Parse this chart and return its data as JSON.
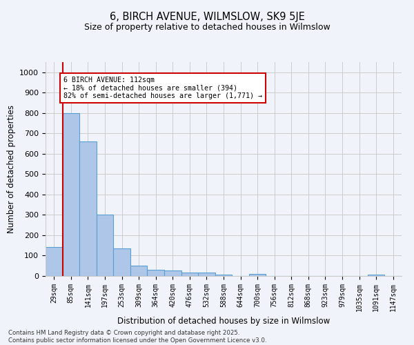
{
  "title": "6, BIRCH AVENUE, WILMSLOW, SK9 5JE",
  "subtitle": "Size of property relative to detached houses in Wilmslow",
  "xlabel": "Distribution of detached houses by size in Wilmslow",
  "ylabel": "Number of detached properties",
  "bins": [
    "29sqm",
    "85sqm",
    "141sqm",
    "197sqm",
    "253sqm",
    "309sqm",
    "364sqm",
    "420sqm",
    "476sqm",
    "532sqm",
    "588sqm",
    "644sqm",
    "700sqm",
    "756sqm",
    "812sqm",
    "868sqm",
    "923sqm",
    "979sqm",
    "1035sqm",
    "1091sqm",
    "1147sqm"
  ],
  "values": [
    143,
    800,
    660,
    300,
    135,
    52,
    30,
    27,
    16,
    16,
    8,
    0,
    10,
    0,
    0,
    0,
    0,
    0,
    0,
    6,
    0
  ],
  "bar_color": "#aec6e8",
  "bar_edge_color": "#5a9fd4",
  "annotation_text": "6 BIRCH AVENUE: 112sqm\n← 18% of detached houses are smaller (394)\n82% of semi-detached houses are larger (1,771) →",
  "annotation_box_color": "#ffffff",
  "annotation_box_edge_color": "#cc0000",
  "red_line_color": "#cc0000",
  "ylim": [
    0,
    1050
  ],
  "background_color": "#f0f4fa",
  "grid_color": "#cccccc",
  "footer_line1": "Contains HM Land Registry data © Crown copyright and database right 2025.",
  "footer_line2": "Contains public sector information licensed under the Open Government Licence v3.0."
}
